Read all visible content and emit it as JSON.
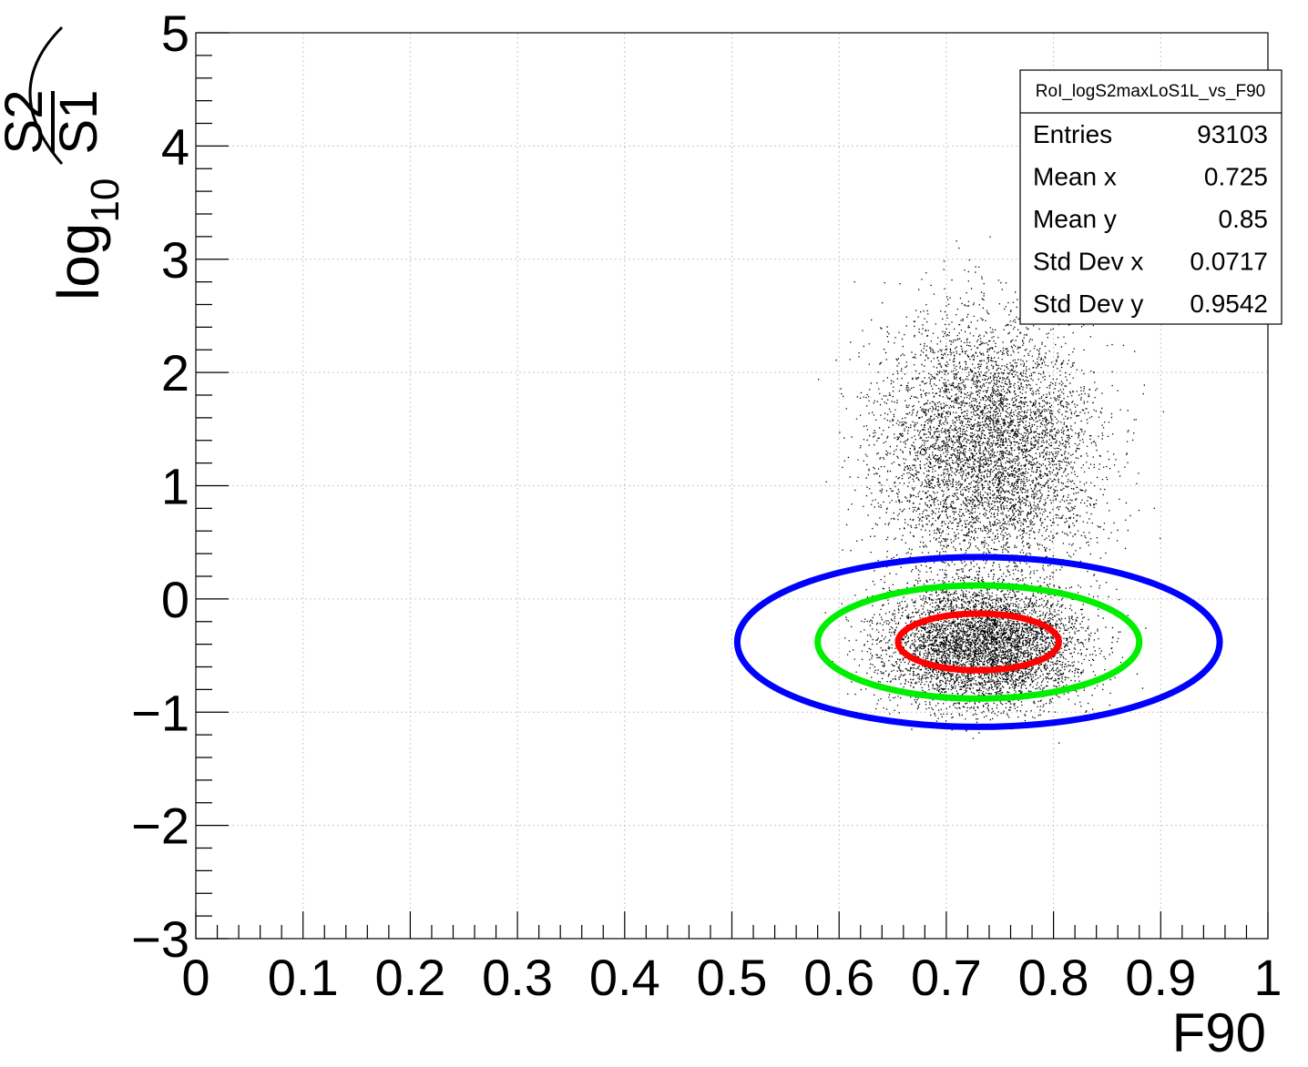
{
  "chart_data": {
    "type": "scatter",
    "title": "",
    "xlabel": "F90",
    "ylabel": {
      "prefix": "log",
      "subscript": "10",
      "numerator": "S2",
      "denominator": "S1"
    },
    "xlim": [
      0,
      1
    ],
    "ylim": [
      -3,
      5
    ],
    "x_ticks": [
      "0",
      "0.1",
      "0.2",
      "0.3",
      "0.4",
      "0.5",
      "0.6",
      "0.7",
      "0.8",
      "0.9",
      "1"
    ],
    "y_ticks": [
      "−3",
      "−2",
      "−1",
      "0",
      "1",
      "2",
      "3",
      "4",
      "5"
    ],
    "grid": true,
    "point_color": "#000000",
    "clusters": [
      {
        "name": "upper",
        "center": [
          0.74,
          1.35
        ],
        "std": [
          0.07,
          0.8
        ],
        "share": 0.62
      },
      {
        "name": "lower",
        "center": [
          0.735,
          -0.4
        ],
        "std": [
          0.065,
          0.38
        ],
        "share": 0.38
      }
    ],
    "ellipses": [
      {
        "color": "#0000ff",
        "cx": 0.73,
        "cy": -0.38,
        "rx": 0.225,
        "ry": 0.75
      },
      {
        "color": "#00ee00",
        "cx": 0.73,
        "cy": -0.38,
        "rx": 0.15,
        "ry": 0.5
      },
      {
        "color": "#ff0000",
        "cx": 0.73,
        "cy": -0.38,
        "rx": 0.075,
        "ry": 0.25
      }
    ],
    "stats_box": {
      "title": "RoI_logS2maxLoS1L_vs_F90",
      "rows": [
        {
          "label": "Entries",
          "value": "93103"
        },
        {
          "label": "Mean x",
          "value": "0.725"
        },
        {
          "label": "Mean y",
          "value": "0.85"
        },
        {
          "label": "Std Dev x",
          "value": "0.0717"
        },
        {
          "label": "Std Dev y",
          "value": "0.9542"
        }
      ]
    }
  }
}
